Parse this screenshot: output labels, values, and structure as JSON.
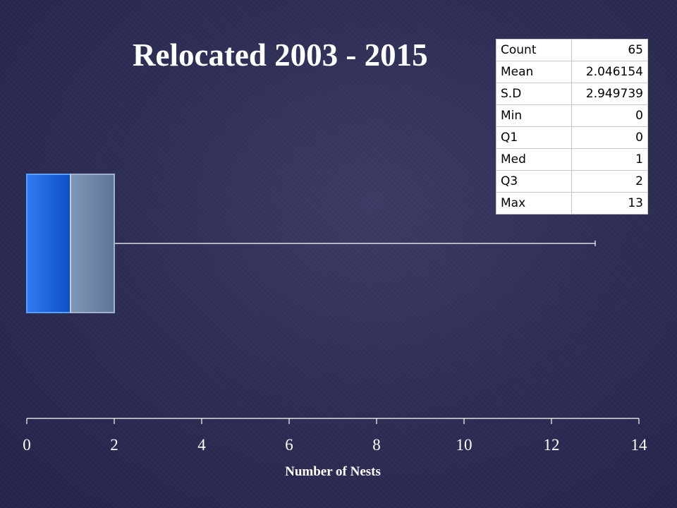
{
  "chart_data": {
    "type": "box",
    "title": "Relocated 2003 - 2015",
    "xlabel": "Number of Nests",
    "xlim": [
      0,
      14
    ],
    "x_ticks": [
      0,
      2,
      4,
      6,
      8,
      10,
      12,
      14
    ],
    "x_tick_labels": [
      "0",
      "2",
      "4",
      "6",
      "8",
      "10",
      "12",
      "14"
    ],
    "box": {
      "min": 0,
      "q1": 0,
      "median": 1,
      "q3": 2,
      "max": 13
    },
    "colors": {
      "lower_box": "#1a63d8",
      "upper_box": "#6d86a8",
      "whisker": "#ffffff",
      "axis": "#ffffff"
    },
    "stats_table": [
      {
        "label": "Count",
        "value": "65"
      },
      {
        "label": "Mean",
        "value": "2.046154"
      },
      {
        "label": "S.D",
        "value": "2.949739"
      },
      {
        "label": "Min",
        "value": "0"
      },
      {
        "label": "Q1",
        "value": "0"
      },
      {
        "label": "Med",
        "value": "1"
      },
      {
        "label": "Q3",
        "value": "2"
      },
      {
        "label": "Max",
        "value": "13"
      }
    ]
  }
}
